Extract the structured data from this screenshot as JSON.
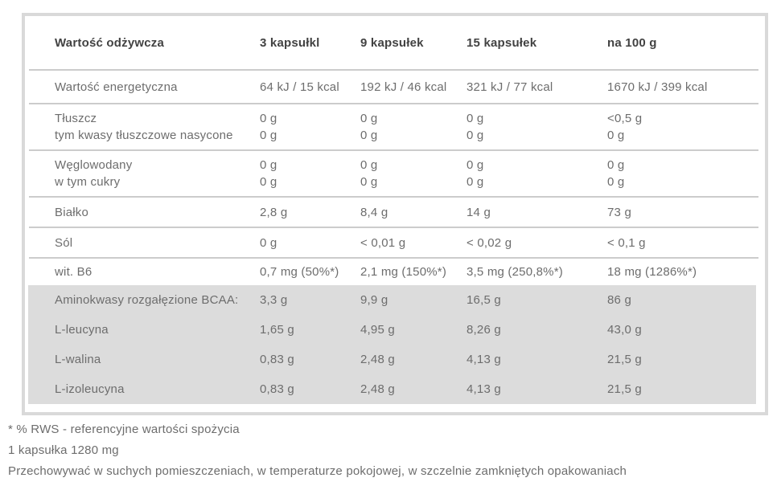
{
  "table": {
    "header": {
      "label": "Wartość odżywcza",
      "columns": [
        "3 kapsułkl",
        "9 kapsułek",
        "15 kapsułek",
        "na 100 g"
      ]
    },
    "rows": [
      {
        "cells": [
          [
            "Wartość energetyczna"
          ],
          [
            "64 kJ / 15 kcal"
          ],
          [
            "192 kJ / 46 kcal"
          ],
          [
            "321 kJ / 77 kcal"
          ],
          [
            "1670 kJ / 399 kcal"
          ]
        ]
      },
      {
        "cells": [
          [
            "Tłuszcz",
            "tym kwasy tłuszczowe nasycone"
          ],
          [
            "0 g",
            "0 g"
          ],
          [
            "0 g",
            "0 g"
          ],
          [
            "0 g",
            "0 g"
          ],
          [
            "<0,5 g",
            "0 g"
          ]
        ]
      },
      {
        "cells": [
          [
            "Węglowodany",
            "w tym cukry"
          ],
          [
            "0 g",
            "0 g"
          ],
          [
            "0 g",
            "0 g"
          ],
          [
            "0 g",
            "0 g"
          ],
          [
            "0 g",
            "0 g"
          ]
        ]
      },
      {
        "cells": [
          [
            "Białko"
          ],
          [
            "2,8 g"
          ],
          [
            "8,4 g"
          ],
          [
            "14 g"
          ],
          [
            "73 g"
          ]
        ]
      },
      {
        "cells": [
          [
            "Sól"
          ],
          [
            "0 g"
          ],
          [
            "< 0,01 g"
          ],
          [
            "< 0,02 g"
          ],
          [
            "< 0,1 g"
          ]
        ]
      },
      {
        "cells": [
          [
            "wit. B6"
          ],
          [
            "0,7 mg (50%*)"
          ],
          [
            "2,1 mg (150%*)"
          ],
          [
            "3,5 mg (250,8%*)"
          ],
          [
            "18 mg (1286%*)"
          ]
        ]
      }
    ],
    "highlight_rows": [
      {
        "cells": [
          [
            "Aminokwasy rozgałęzione BCAA:"
          ],
          [
            "3,3 g"
          ],
          [
            "9,9 g"
          ],
          [
            "16,5 g"
          ],
          [
            "86 g"
          ]
        ]
      },
      {
        "cells": [
          [
            "L-leucyna"
          ],
          [
            "1,65 g"
          ],
          [
            "4,95 g"
          ],
          [
            "8,26 g"
          ],
          [
            "43,0 g"
          ]
        ]
      },
      {
        "cells": [
          [
            "L-walina"
          ],
          [
            "0,83 g"
          ],
          [
            "2,48 g"
          ],
          [
            "4,13 g"
          ],
          [
            "21,5 g"
          ]
        ]
      },
      {
        "cells": [
          [
            "L-izoleucyna"
          ],
          [
            "0,83 g"
          ],
          [
            "2,48 g"
          ],
          [
            "4,13 g"
          ],
          [
            "21,5 g"
          ]
        ]
      }
    ]
  },
  "footnotes": [
    "* % RWS - referencyjne wartości spożycia",
    "1 kapsułka 1280 mg",
    "Przechowywać w suchych pomieszczeniach, w temperaturze pokojowej, w szczelnie zamkniętych opakowaniach"
  ],
  "colors": {
    "panel_border": "#d9d9d9",
    "separator": "#cccccc",
    "highlight_background": "#dcdcdc",
    "header_text": "#424242",
    "body_text": "#6d6d6d",
    "background": "#ffffff"
  }
}
